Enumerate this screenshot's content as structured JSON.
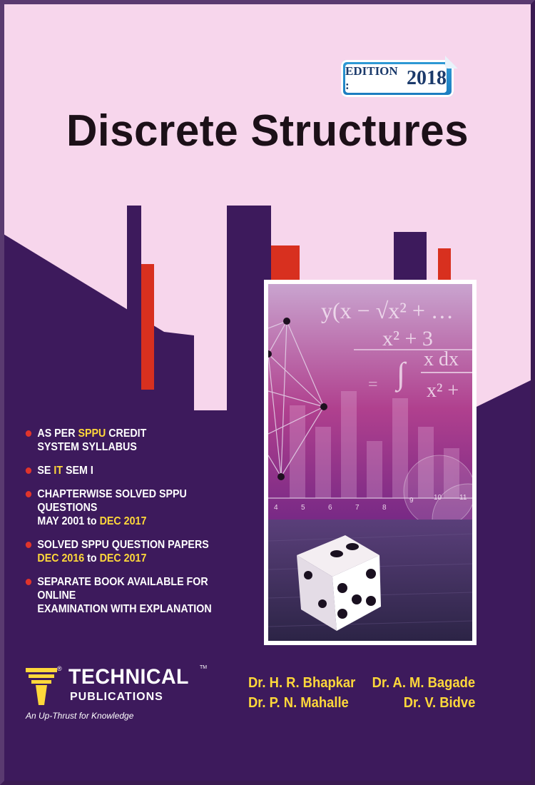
{
  "cover": {
    "title": "Discrete Structures",
    "edition": {
      "label": "EDITION :",
      "year": "2018"
    },
    "bullets": [
      [
        {
          "t": "AS PER "
        },
        {
          "t": "SPPU",
          "hl": true
        },
        {
          "t": " CREDIT"
        },
        {
          "br": true
        },
        {
          "t": "SYSTEM SYLLABUS"
        }
      ],
      [
        {
          "t": "SE "
        },
        {
          "t": "IT",
          "hl": true
        },
        {
          "t": " SEM I"
        }
      ],
      [
        {
          "t": "CHAPTERWISE SOLVED SPPU QUESTIONS"
        },
        {
          "br": true
        },
        {
          "t": "MAY 2001 to "
        },
        {
          "t": "DEC 2017",
          "hl": true
        }
      ],
      [
        {
          "t": "SOLVED SPPU QUESTION PAPERS"
        },
        {
          "br": true
        },
        {
          "t": "DEC 2016",
          "hl": true
        },
        {
          "t": " to "
        },
        {
          "t": "DEC 2017",
          "hl": true
        }
      ],
      [
        {
          "t": "SEPARATE BOOK AVAILABLE FOR ONLINE"
        },
        {
          "br": true
        },
        {
          "t": "EXAMINATION WITH EXPLANATION"
        }
      ]
    ],
    "authors": [
      "Dr. H. R. Bhapkar",
      "Dr. A. M. Bagade",
      "Dr. P. N. Mahalle",
      "Dr. V. Bidve"
    ],
    "publisher": {
      "name": "TECHNICAL",
      "sub": "PUBLICATIONS",
      "tagline": "An Up-Thrust for Knowledge",
      "reg": "®",
      "tm": "TM"
    },
    "photo": {
      "formula_1": "y(x − √x² + …",
      "formula_2": "x² + 3",
      "formula_3": "x dx",
      "formula_4": "x² +",
      "axis_ticks": [
        "4",
        "5",
        "6",
        "7",
        "8",
        "9",
        "10",
        "11"
      ]
    },
    "colors": {
      "background": "#f7d6ec",
      "purple": "#3d1a5c",
      "red": "#d8301f",
      "yellow": "#ffd83a",
      "blue": "#1b7bbf"
    }
  }
}
